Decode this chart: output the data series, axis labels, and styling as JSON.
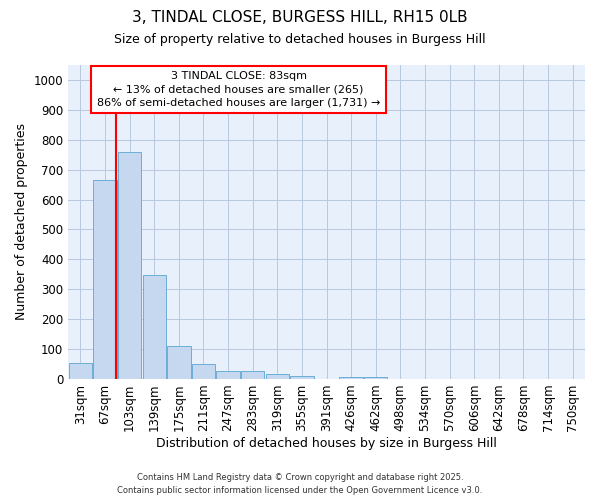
{
  "title_line1": "3, TINDAL CLOSE, BURGESS HILL, RH15 0LB",
  "title_line2": "Size of property relative to detached houses in Burgess Hill",
  "xlabel": "Distribution of detached houses by size in Burgess Hill",
  "ylabel": "Number of detached properties",
  "bar_labels": [
    "31sqm",
    "67sqm",
    "103sqm",
    "139sqm",
    "175sqm",
    "211sqm",
    "247sqm",
    "283sqm",
    "319sqm",
    "355sqm",
    "391sqm",
    "426sqm",
    "462sqm",
    "498sqm",
    "534sqm",
    "570sqm",
    "606sqm",
    "642sqm",
    "678sqm",
    "714sqm",
    "750sqm"
  ],
  "bar_values": [
    55,
    665,
    758,
    347,
    110,
    50,
    27,
    27,
    15,
    10,
    0,
    5,
    5,
    0,
    0,
    0,
    0,
    0,
    0,
    0,
    0
  ],
  "bar_color": "#c5d8f0",
  "bar_edge_color": "#6baed6",
  "grid_color": "#b8c8e0",
  "background_color": "#e8f0fb",
  "red_line_x": 1.45,
  "annotation_text": "3 TINDAL CLOSE: 83sqm\n← 13% of detached houses are smaller (265)\n86% of semi-detached houses are larger (1,731) →",
  "annotation_box_color": "white",
  "annotation_box_edge_color": "red",
  "footer_line1": "Contains HM Land Registry data © Crown copyright and database right 2025.",
  "footer_line2": "Contains public sector information licensed under the Open Government Licence v3.0.",
  "ylim": [
    0,
    1050
  ],
  "yticks": [
    0,
    100,
    200,
    300,
    400,
    500,
    600,
    700,
    800,
    900,
    1000
  ]
}
